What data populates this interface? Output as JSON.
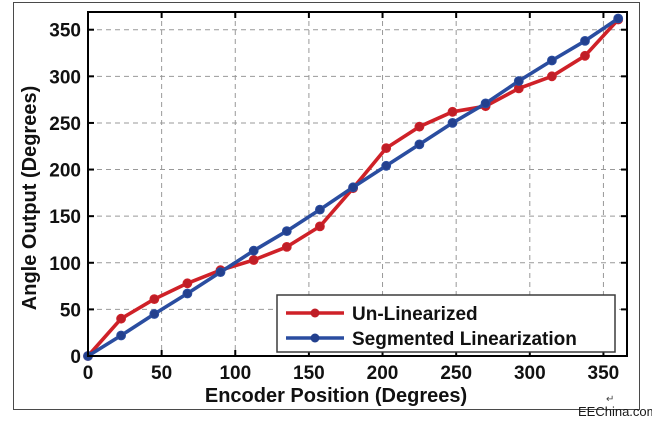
{
  "watermark": {
    "text": "EEChina.com",
    "arrow": "↵"
  },
  "chart_data": {
    "type": "line",
    "title": "",
    "xlabel": "Encoder Position (Degrees)",
    "ylabel": "Angle Output (Degrees)",
    "xlim": [
      0,
      366
    ],
    "ylim": [
      0,
      369
    ],
    "xticks": [
      0,
      50,
      100,
      150,
      200,
      250,
      300,
      350
    ],
    "yticks": [
      0,
      50,
      100,
      150,
      200,
      250,
      300,
      350
    ],
    "grid": true,
    "grid_color": "#999999",
    "background": "#ffffff",
    "legend_position": "lower right",
    "series": [
      {
        "name": "Un-Linearized",
        "color": "#cf2128",
        "marker_color": "#bf1e27",
        "x": [
          0,
          22.5,
          45,
          67.5,
          90,
          112.5,
          135,
          157.5,
          180,
          202.5,
          225,
          247.5,
          270,
          292.5,
          315,
          337.5,
          360
        ],
        "y": [
          0,
          40,
          61,
          78,
          92,
          103,
          117,
          139,
          180,
          223,
          246,
          262,
          268,
          287,
          300,
          322,
          361
        ]
      },
      {
        "name": "Segmented Linearization",
        "color": "#2a4da0",
        "marker_color": "#23408e",
        "x": [
          0,
          22.5,
          45,
          67.5,
          90,
          112.5,
          135,
          157.5,
          180,
          202.5,
          225,
          247.5,
          270,
          292.5,
          315,
          337.5,
          360
        ],
        "y": [
          0,
          22,
          45,
          67,
          90,
          113,
          134,
          157,
          181,
          204,
          227,
          250,
          271,
          295,
          317,
          338,
          362
        ]
      }
    ]
  }
}
